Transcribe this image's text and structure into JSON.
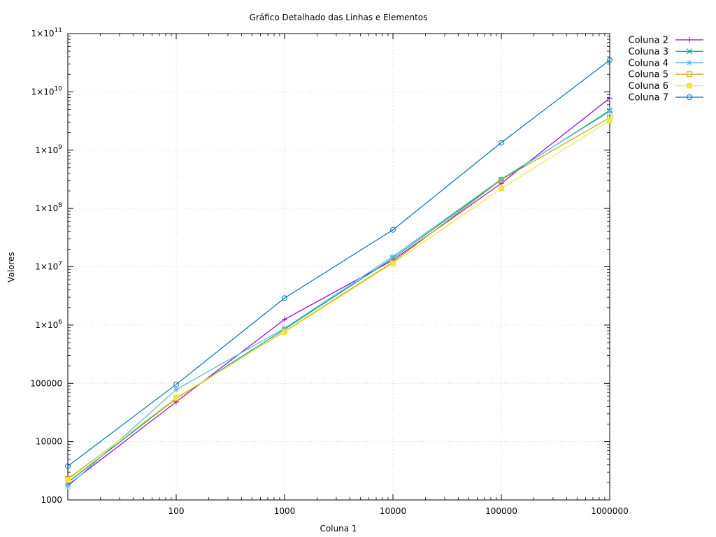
{
  "chart_data": {
    "type": "line",
    "title": "Gráfico Detalhado das Linhas e Elementos",
    "xlabel": "Coluna 1",
    "ylabel": "Valores",
    "x_scale": "log",
    "y_scale": "log",
    "xlim": [
      10,
      1000000
    ],
    "ylim": [
      1000,
      100000000000
    ],
    "x": [
      10,
      100,
      1000,
      10000,
      100000,
      1000000
    ],
    "x_tick_labels": [
      "100",
      "1000",
      "10000",
      "100000",
      "1000000"
    ],
    "y_tick_labels": [
      {
        "mantissa": "1000",
        "exp": ""
      },
      {
        "mantissa": "10000",
        "exp": ""
      },
      {
        "mantissa": "100000",
        "exp": ""
      },
      {
        "mantissa": "1×10",
        "exp": "6"
      },
      {
        "mantissa": "1×10",
        "exp": "7"
      },
      {
        "mantissa": "1×10",
        "exp": "8"
      },
      {
        "mantissa": "1×10",
        "exp": "9"
      },
      {
        "mantissa": "1×10",
        "exp": "10"
      },
      {
        "mantissa": "1×10",
        "exp": "11"
      }
    ],
    "grid": true,
    "legend_position": "outside-top-right",
    "series": [
      {
        "name": "Coluna 2",
        "color": "#9400d3",
        "marker": "plus",
        "values": [
          1800,
          48000,
          1250000,
          13000000,
          270000000,
          7800000000
        ]
      },
      {
        "name": "Coluna 3",
        "color": "#009e73",
        "marker": "cross",
        "values": [
          2000,
          55000,
          850000,
          14000000,
          310000000,
          4800000000
        ]
      },
      {
        "name": "Coluna 4",
        "color": "#56b4e9",
        "marker": "star",
        "values": [
          1700,
          78000,
          880000,
          15000000,
          320000000,
          4600000000
        ]
      },
      {
        "name": "Coluna 5",
        "color": "#c8a000",
        "marker": "square-open",
        "values": [
          2300,
          55000,
          780000,
          12000000,
          310000000,
          3600000000
        ]
      },
      {
        "name": "Coluna 6",
        "color": "#f0e442",
        "marker": "square-filled",
        "values": [
          2200,
          57000,
          760000,
          11500000,
          220000000,
          3200000000
        ]
      },
      {
        "name": "Coluna 7",
        "color": "#0072b2",
        "marker": "circle-open",
        "values": [
          3800,
          96000,
          2900000,
          43000000,
          1350000000,
          35000000000
        ]
      }
    ]
  }
}
